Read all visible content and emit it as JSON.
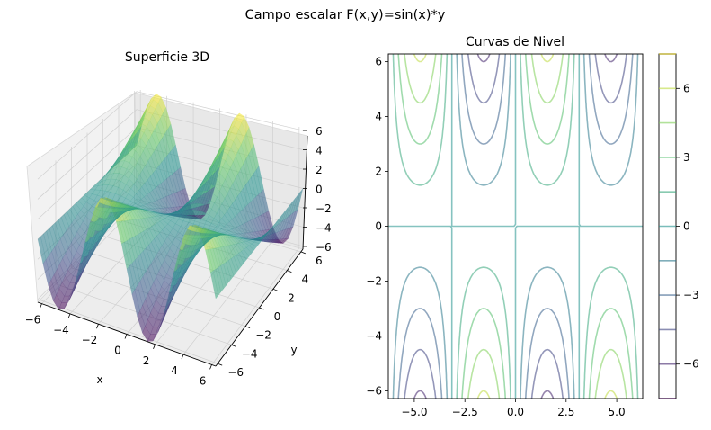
{
  "suptitle": "Campo escalar F(x,y)=sin(x)*y",
  "chart_data": [
    {
      "type": "surface",
      "title": "Superficie 3D",
      "function": "sin(x)*y",
      "xlabel": "x",
      "ylabel": "y",
      "zlabel": "",
      "xlim": [
        -6.283,
        6.283
      ],
      "ylim": [
        -6.283,
        6.283
      ],
      "zlim": [
        -6.283,
        6.283
      ],
      "xticks": [
        -6,
        -4,
        -2,
        0,
        2,
        4,
        6
      ],
      "yticks": [
        -6,
        -4,
        -2,
        0,
        2,
        4,
        6
      ],
      "zticks": [
        6,
        4,
        2,
        0,
        -2,
        -4,
        -6
      ],
      "colormap": "viridis",
      "alpha": 0.5,
      "grid": true
    },
    {
      "type": "contour",
      "title": "Curvas de Nivel",
      "function": "sin(x)*y",
      "xlim": [
        -6.283,
        6.283
      ],
      "ylim": [
        -6.283,
        6.283
      ],
      "xticks": [
        "−5.0",
        "−2.5",
        "0.0",
        "2.5",
        "5.0"
      ],
      "yticks": [
        "−6",
        "−4",
        "−2",
        "0",
        "2",
        "4",
        "6"
      ],
      "levels": [
        -7.5,
        -6,
        -4.5,
        -3,
        -1.5,
        0,
        1.5,
        3,
        4.5,
        6,
        7.5
      ],
      "colormap": "viridis",
      "alpha": 0.5,
      "colorbar_ticks": [
        "6",
        "3",
        "0",
        "−3",
        "−6"
      ],
      "colorbar_values": [
        6,
        3,
        0,
        -3,
        -6
      ]
    }
  ],
  "colors": {
    "viridis_low": "#440154",
    "viridis_mid": "#21918c",
    "viridis_high": "#fde725"
  }
}
